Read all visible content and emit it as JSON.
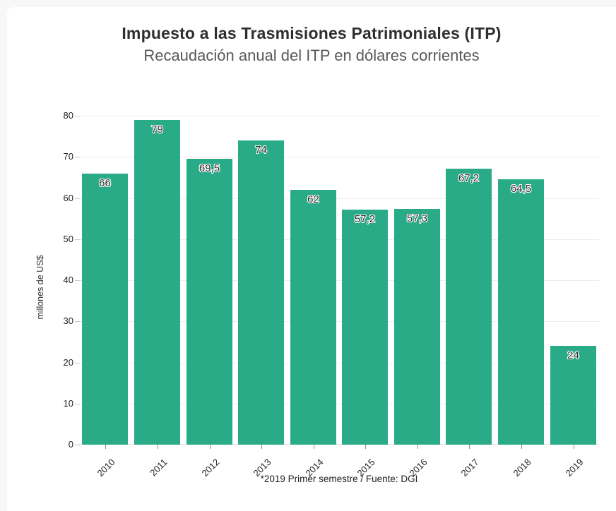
{
  "page": {
    "background_color": "#f7f7f8",
    "card_color": "#ffffff"
  },
  "header": {
    "title": "Impuesto a las Trasmisiones Patrimoniales (ITP)",
    "subtitle": "Recaudación anual del ITP en dólares corrientes"
  },
  "chart_data": {
    "type": "bar",
    "title": "Impuesto a las Trasmisiones Patrimoniales (ITP)",
    "subtitle": "Recaudación anual del ITP en dólares corrientes",
    "categories": [
      "2010",
      "2011",
      "2012",
      "2013",
      "2014",
      "2015",
      "2016",
      "2017",
      "2018",
      "2019"
    ],
    "values": [
      66,
      79,
      69.5,
      74,
      62,
      57.2,
      57.3,
      67.2,
      64.5,
      24
    ],
    "value_labels": [
      "66",
      "79",
      "69,5",
      "74",
      "62",
      "57,2",
      "57,3",
      "67,2",
      "64,5",
      "24"
    ],
    "xlabel": "",
    "ylabel": "millones de US$",
    "ylim": [
      0,
      80
    ],
    "ytick_step": 10,
    "yticks": [
      0,
      10,
      20,
      30,
      40,
      50,
      60,
      70,
      80
    ],
    "bar_color": "#2aab87",
    "grid": true,
    "gridline_color": "#ededed",
    "legend": "none",
    "footnote": "*2019 Primer semestre / Fuente: DGI"
  }
}
